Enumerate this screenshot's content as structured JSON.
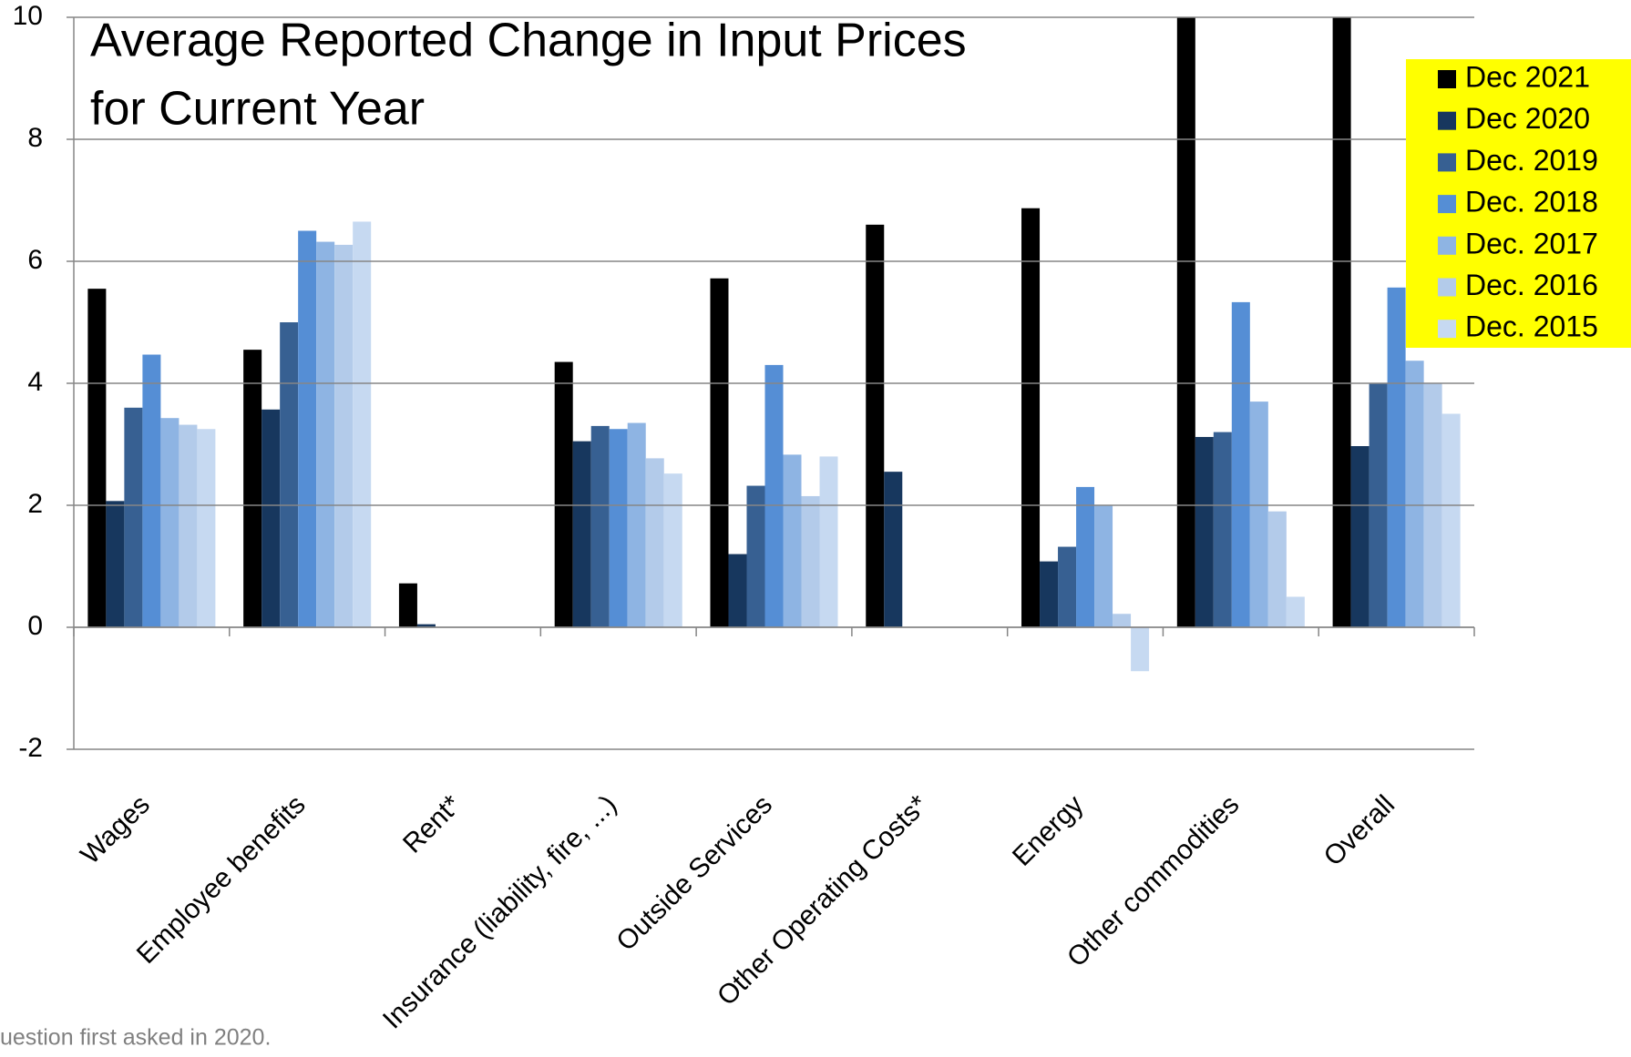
{
  "chart_data": {
    "type": "bar",
    "title": [
      "Average Reported Change in Input Prices",
      "for Current Year"
    ],
    "footnote": "uestion first asked in 2020.",
    "categories": [
      "Wages",
      "Employee benefits",
      "Rent*",
      "Insurance (liability, fire, ...)",
      "Outside Services",
      "Other Operating Costs*",
      "Energy",
      "Other commodities",
      "Overall"
    ],
    "series": [
      {
        "name": "Dec 2021",
        "color": "#000000",
        "values": [
          5.55,
          4.55,
          0.72,
          4.35,
          5.72,
          6.6,
          6.87,
          10,
          10
        ]
      },
      {
        "name": "Dec 2020",
        "color": "#17375e",
        "values": [
          2.07,
          3.57,
          0.05,
          3.05,
          1.2,
          2.55,
          1.08,
          3.12,
          2.97
        ]
      },
      {
        "name": "Dec. 2019",
        "color": "#376092",
        "values": [
          3.6,
          5.0,
          null,
          3.3,
          2.32,
          null,
          1.32,
          3.2,
          4.0
        ]
      },
      {
        "name": "Dec. 2018",
        "color": "#558ed5",
        "values": [
          4.47,
          6.5,
          null,
          3.25,
          4.3,
          null,
          2.3,
          5.33,
          5.57
        ]
      },
      {
        "name": "Dec. 2017",
        "color": "#8eb4e3",
        "values": [
          3.43,
          6.32,
          null,
          3.35,
          2.83,
          null,
          2.0,
          3.7,
          4.37
        ]
      },
      {
        "name": "Dec. 2016",
        "color": "#b3cbea",
        "values": [
          3.32,
          6.27,
          null,
          2.77,
          2.15,
          null,
          0.22,
          1.9,
          4.0
        ]
      },
      {
        "name": "Dec. 2015",
        "color": "#c6d9f1",
        "values": [
          3.25,
          6.65,
          null,
          2.52,
          2.8,
          null,
          -0.72,
          0.5,
          3.5
        ]
      }
    ],
    "ylim": [
      -2,
      10
    ],
    "yticks": [
      -2,
      0,
      2,
      4,
      6,
      8,
      10
    ],
    "grid": true,
    "legend": "upper right",
    "legend_background": "#ffff00"
  }
}
